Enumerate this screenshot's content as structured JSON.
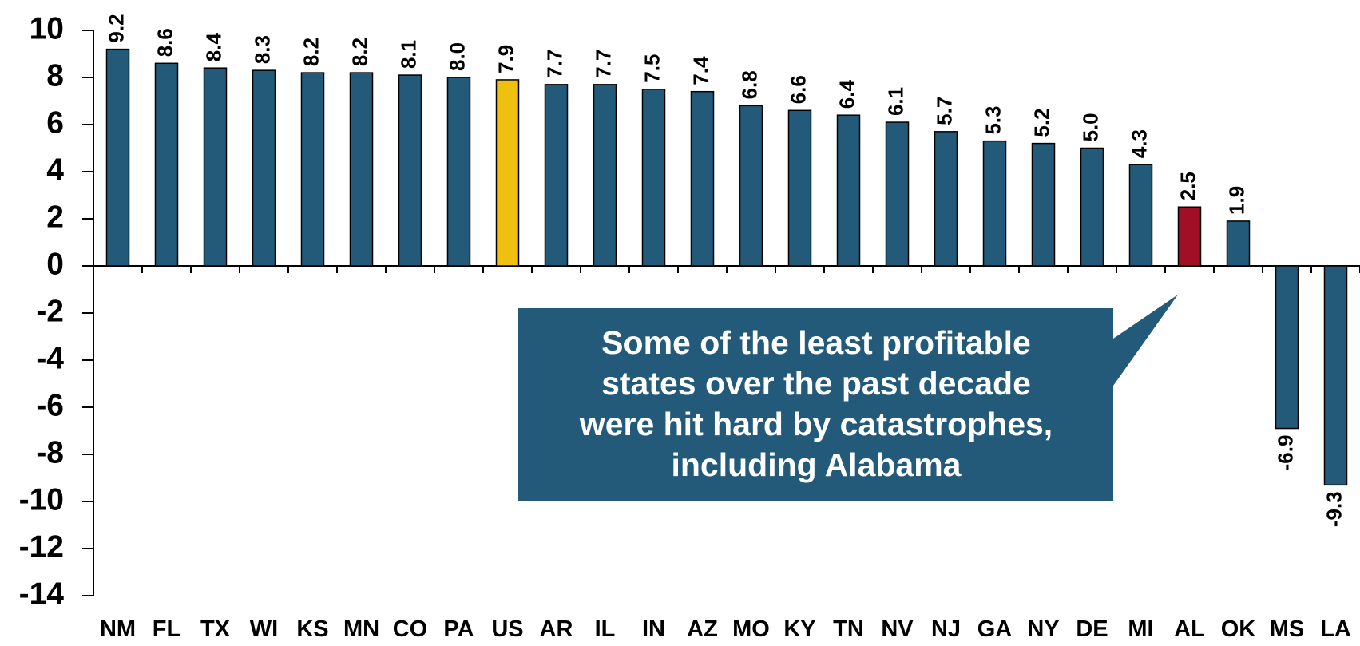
{
  "chart_data": {
    "type": "bar",
    "categories": [
      "NM",
      "FL",
      "TX",
      "WI",
      "KS",
      "MN",
      "CO",
      "PA",
      "US",
      "AR",
      "IL",
      "IN",
      "AZ",
      "MO",
      "KY",
      "TN",
      "NV",
      "NJ",
      "GA",
      "NY",
      "DE",
      "MI",
      "AL",
      "OK",
      "MS",
      "LA"
    ],
    "values": [
      9.2,
      8.6,
      8.4,
      8.3,
      8.2,
      8.2,
      8.1,
      8.0,
      7.9,
      7.7,
      7.7,
      7.5,
      7.4,
      6.8,
      6.6,
      6.4,
      6.1,
      5.7,
      5.3,
      5.2,
      5.0,
      4.3,
      2.5,
      1.9,
      -6.9,
      -9.3
    ],
    "value_labels": [
      "9.2",
      "8.6",
      "8.4",
      "8.3",
      "8.2",
      "8.2",
      "8.1",
      "8.0",
      "7.9",
      "7.7",
      "7.7",
      "7.5",
      "7.4",
      "6.8",
      "6.6",
      "6.4",
      "6.1",
      "5.7",
      "5.3",
      "5.2",
      "5.0",
      "4.3",
      "2.5",
      "1.9",
      "-6.9",
      "-9.3"
    ],
    "colors": [
      "#235a7a",
      "#235a7a",
      "#235a7a",
      "#235a7a",
      "#235a7a",
      "#235a7a",
      "#235a7a",
      "#235a7a",
      "#f0c010",
      "#235a7a",
      "#235a7a",
      "#235a7a",
      "#235a7a",
      "#235a7a",
      "#235a7a",
      "#235a7a",
      "#235a7a",
      "#235a7a",
      "#235a7a",
      "#235a7a",
      "#235a7a",
      "#235a7a",
      "#a00f25",
      "#235a7a",
      "#235a7a",
      "#235a7a"
    ],
    "ylim": [
      -14,
      10
    ],
    "yticks": [
      -14,
      -12,
      -10,
      -8,
      -6,
      -4,
      -2,
      0,
      2,
      4,
      6,
      8,
      10
    ],
    "annotation": [
      "Some of the least profitable",
      "states over the past decade",
      "were hit hard by catastrophes,",
      "including Alabama"
    ]
  }
}
